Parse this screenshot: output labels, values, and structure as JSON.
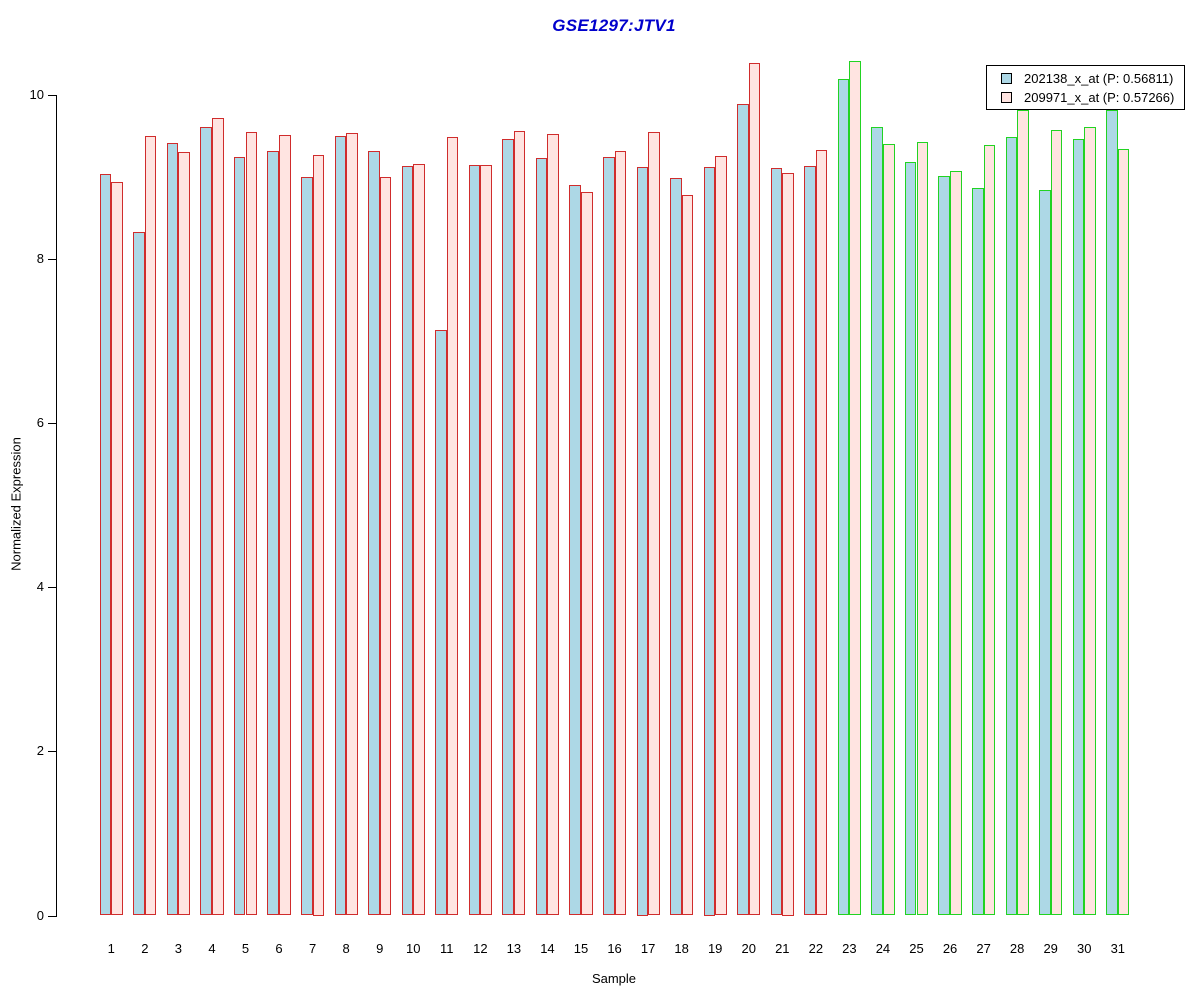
{
  "chart_data": {
    "type": "bar",
    "title": "GSE1297:JTV1",
    "xlabel": "Sample",
    "ylabel": "Normalized Expression",
    "categories": [
      "1",
      "2",
      "3",
      "4",
      "5",
      "6",
      "7",
      "8",
      "9",
      "10",
      "11",
      "12",
      "13",
      "14",
      "15",
      "16",
      "17",
      "18",
      "19",
      "20",
      "21",
      "22",
      "23",
      "24",
      "25",
      "26",
      "27",
      "28",
      "29",
      "30",
      "31"
    ],
    "series": [
      {
        "name": "202138_x_at",
        "legend_label": "202138_x_at (P: 0.56811)",
        "fill": "#add8e6",
        "values": [
          9.03,
          8.33,
          9.41,
          9.61,
          9.24,
          9.31,
          8.99,
          9.49,
          9.31,
          9.13,
          7.13,
          9.14,
          9.46,
          9.23,
          8.9,
          9.24,
          9.12,
          8.98,
          9.12,
          9.88,
          9.11,
          9.13,
          10.19,
          9.6,
          9.18,
          9.01,
          8.86,
          9.48,
          8.84,
          9.46,
          9.81
        ]
      },
      {
        "name": "209971_x_at",
        "legend_label": "209971_x_at (P: 0.57266)",
        "fill": "#ffe4e1",
        "values": [
          8.94,
          9.5,
          9.3,
          9.71,
          9.54,
          9.51,
          9.26,
          9.53,
          9.0,
          9.15,
          9.48,
          9.14,
          9.55,
          9.52,
          8.81,
          9.31,
          9.54,
          8.77,
          9.25,
          10.38,
          9.05,
          9.33,
          10.41,
          9.4,
          9.42,
          9.07,
          9.39,
          9.81,
          9.57,
          9.61,
          9.34
        ]
      }
    ],
    "yticks": [
      0,
      2,
      4,
      6,
      8,
      10
    ],
    "ylim": [
      0,
      10.5
    ],
    "grid": false,
    "legend_position": "top-right",
    "border_green_from_sample": 23,
    "colors": {
      "title": "#0000cc",
      "border_red": "#d02c2c",
      "border_green": "#22d322",
      "fill_series1": "#add8e6",
      "fill_series2": "#ffe4e1",
      "axis": "#000000"
    }
  }
}
